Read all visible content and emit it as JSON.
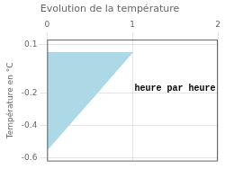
{
  "chart_data": {
    "type": "area",
    "title": "Evolution de la température",
    "ylabel": "Température en °C",
    "x": [
      0,
      0,
      1
    ],
    "values": [
      0.05,
      -0.55,
      0.05
    ],
    "color": "#add8e6",
    "xlim": [
      0,
      2.0
    ],
    "ylim": [
      -0.62,
      0.13
    ],
    "xticks": [
      0,
      1,
      2
    ],
    "yticks": [
      0.1,
      -0.2,
      -0.4,
      -0.6
    ],
    "grid": true,
    "annotations": [
      {
        "text": "heure par heure",
        "x": 1.5,
        "y": -0.17
      }
    ]
  }
}
